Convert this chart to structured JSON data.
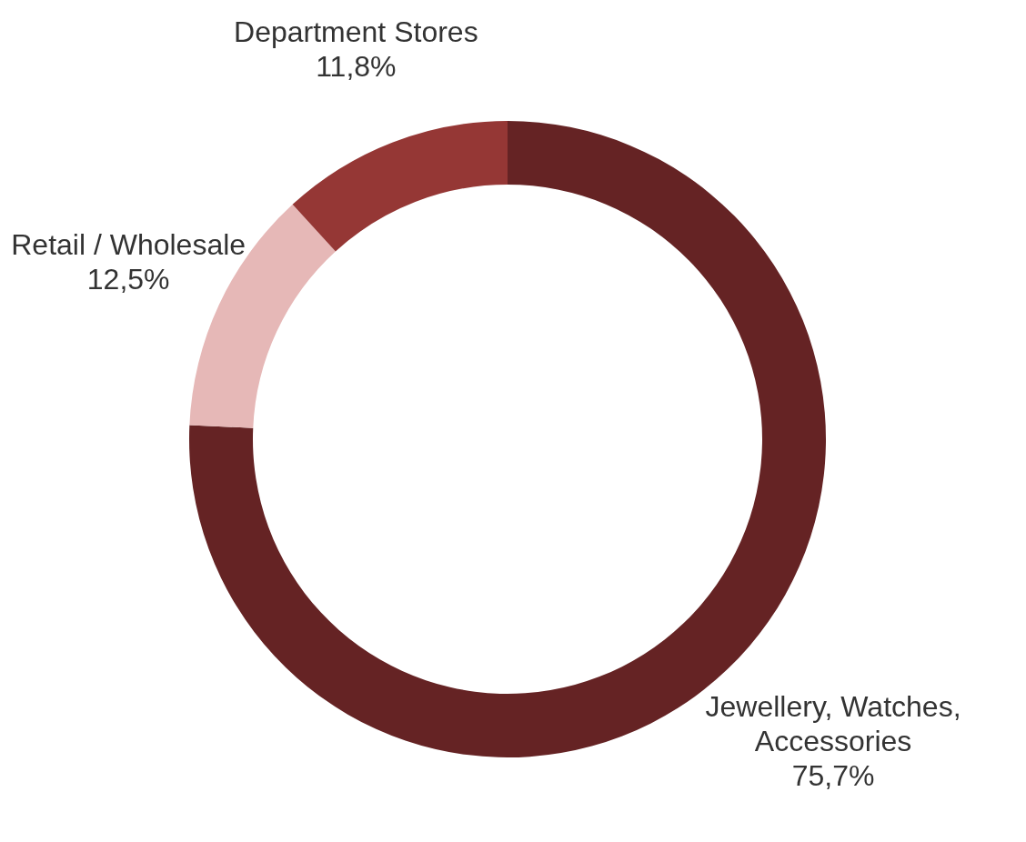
{
  "chart_data": {
    "type": "donut",
    "categories": [
      "Jewellery, Watches, Accessories",
      "Retail / Wholesale",
      "Department Stores"
    ],
    "values": [
      75.7,
      12.5,
      11.8
    ],
    "value_labels": [
      "75,7%",
      "12,5%",
      "11,8%"
    ],
    "colors": [
      "#652324",
      "#e6b8b7",
      "#953735"
    ]
  }
}
